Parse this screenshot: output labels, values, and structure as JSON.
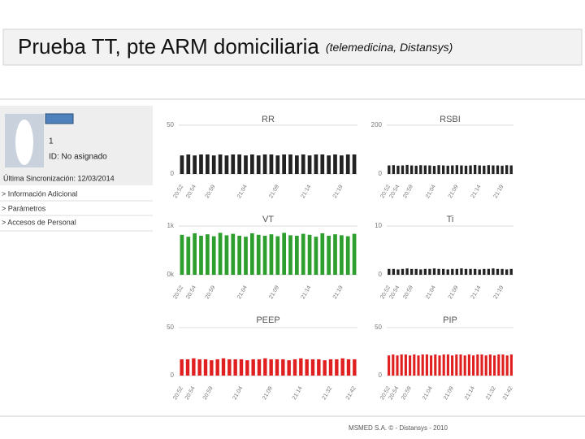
{
  "header": {
    "title": "Prueba TT, pte ARM domiciliaria",
    "subtitle": "(telemedicina, Distansys)"
  },
  "patient": {
    "id_line": "1",
    "id_label": "ID: No asignado",
    "sync": "Última Sincronización: 12/03/2014",
    "links": [
      "> Información Adicional",
      "> Parámetros",
      "> Accesos de Personal"
    ]
  },
  "footer": "MSMED S.A. © - Distansys - 2010",
  "chart_data": [
    {
      "type": "bar",
      "title": "RR",
      "color": "#222222",
      "ylim": [
        0,
        50
      ],
      "yticks": [
        50,
        0
      ],
      "grid": true,
      "categories": [
        "20:52",
        null,
        "20:54",
        null,
        null,
        "20:59",
        null,
        null,
        null,
        null,
        "21:04",
        null,
        null,
        null,
        null,
        "21:09",
        null,
        null,
        null,
        null,
        "21:14",
        null,
        null,
        null,
        null,
        "21:19",
        null,
        null
      ],
      "values": [
        19,
        20,
        19,
        20,
        20,
        19,
        20,
        19,
        20,
        20,
        19,
        20,
        19,
        20,
        20,
        19,
        20,
        20,
        19,
        20,
        19,
        20,
        20,
        19,
        20,
        19,
        20,
        20
      ]
    },
    {
      "type": "bar",
      "title": "RSBI",
      "color": "#222222",
      "ylim": [
        0,
        200
      ],
      "yticks": [
        200,
        0
      ],
      "grid": true,
      "categories": [
        "20:52",
        null,
        "20:54",
        null,
        null,
        "20:59",
        null,
        null,
        null,
        null,
        "21:04",
        null,
        null,
        null,
        null,
        "21:09",
        null,
        null,
        null,
        null,
        "21:14",
        null,
        null,
        null,
        null,
        "21:19",
        null,
        null
      ],
      "values": [
        35,
        36,
        34,
        35,
        37,
        35,
        34,
        36,
        35,
        35,
        33,
        36,
        35,
        34,
        35,
        36,
        35,
        34,
        35,
        37,
        35,
        34,
        36,
        35,
        35,
        34,
        36,
        35
      ]
    },
    {
      "type": "bar",
      "title": "VT",
      "color": "#2e9e2e",
      "ylim": [
        0,
        1000
      ],
      "yticks": [
        {
          "value": 1000,
          "label": "1k"
        },
        {
          "value": 0,
          "label": "0k"
        }
      ],
      "grid": true,
      "categories": [
        "20:52",
        null,
        "20:54",
        null,
        null,
        "20:59",
        null,
        null,
        null,
        null,
        "21:04",
        null,
        null,
        null,
        null,
        "21:09",
        null,
        null,
        null,
        null,
        "21:14",
        null,
        null,
        null,
        null,
        "21:19",
        null,
        null
      ],
      "values": [
        820,
        780,
        850,
        800,
        830,
        790,
        860,
        810,
        840,
        800,
        780,
        850,
        820,
        800,
        830,
        790,
        860,
        810,
        800,
        840,
        820,
        780,
        850,
        800,
        830,
        810,
        790,
        840
      ]
    },
    {
      "type": "bar",
      "title": "Ti",
      "color": "#222222",
      "ylim": [
        0,
        10
      ],
      "yticks": [
        10,
        0
      ],
      "grid": true,
      "categories": [
        "20:52",
        null,
        "20:54",
        null,
        null,
        "20:59",
        null,
        null,
        null,
        null,
        "21:04",
        null,
        null,
        null,
        null,
        "21:09",
        null,
        null,
        null,
        null,
        "21:14",
        null,
        null,
        null,
        null,
        "21:19",
        null,
        null
      ],
      "values": [
        1.2,
        1.2,
        1.1,
        1.2,
        1.3,
        1.2,
        1.2,
        1.1,
        1.2,
        1.2,
        1.3,
        1.2,
        1.2,
        1.1,
        1.2,
        1.2,
        1.3,
        1.2,
        1.2,
        1.2,
        1.1,
        1.2,
        1.2,
        1.3,
        1.2,
        1.2,
        1.1,
        1.2
      ]
    },
    {
      "type": "bar",
      "title": "PEEP",
      "color": "#e02020",
      "ylim": [
        0,
        50
      ],
      "yticks": [
        50,
        0
      ],
      "grid": true,
      "categories": [
        "20:52",
        null,
        "20:54",
        null,
        null,
        "20:59",
        null,
        null,
        null,
        null,
        "21:04",
        null,
        null,
        null,
        null,
        "21:09",
        null,
        null,
        null,
        null,
        "21:14",
        null,
        null,
        null,
        null,
        "21:32",
        null,
        null,
        null,
        "21:42"
      ],
      "values": [
        17,
        17,
        18,
        17,
        17,
        16,
        17,
        18,
        17,
        17,
        17,
        16,
        17,
        17,
        18,
        17,
        17,
        17,
        16,
        17,
        18,
        17,
        17,
        17,
        16,
        17,
        17,
        18,
        17,
        17
      ]
    },
    {
      "type": "bar",
      "title": "PIP",
      "color": "#e02020",
      "ylim": [
        0,
        50
      ],
      "yticks": [
        50,
        0
      ],
      "grid": true,
      "categories": [
        "20:52",
        null,
        "20:54",
        null,
        null,
        "20:59",
        null,
        null,
        null,
        null,
        "21:04",
        null,
        null,
        null,
        null,
        "21:09",
        null,
        null,
        null,
        null,
        "21:14",
        null,
        null,
        null,
        null,
        "21:32",
        null,
        null,
        null,
        "21:42"
      ],
      "values": [
        21,
        22,
        21,
        22,
        22,
        21,
        22,
        21,
        22,
        22,
        21,
        22,
        21,
        22,
        22,
        21,
        22,
        22,
        21,
        22,
        21,
        22,
        22,
        21,
        22,
        21,
        22,
        22,
        21,
        22
      ]
    }
  ]
}
